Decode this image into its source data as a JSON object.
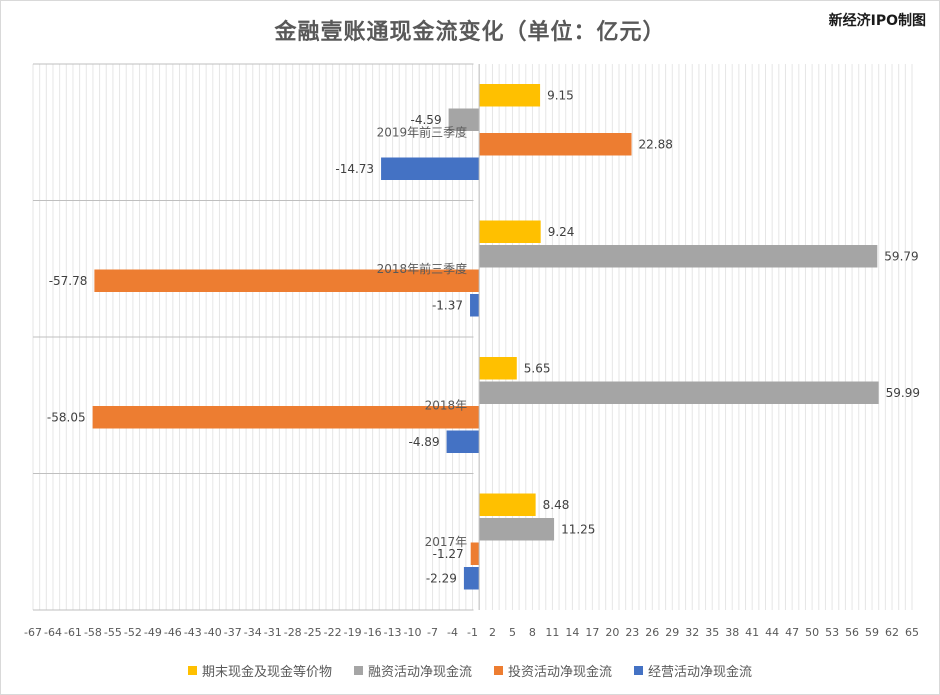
{
  "chart_data": {
    "type": "bar",
    "orientation": "horizontal",
    "title": "金融壹账通现金流变化（单位：亿元）",
    "xlabel": "",
    "ylabel": "",
    "xlim": [
      -67,
      65
    ],
    "x_ticks": [
      -67,
      -64,
      -61,
      -58,
      -55,
      -52,
      -49,
      -46,
      -43,
      -40,
      -37,
      -34,
      -31,
      -28,
      -25,
      -22,
      -19,
      -16,
      -13,
      -10,
      -7,
      -4,
      -1,
      2,
      5,
      8,
      11,
      14,
      17,
      20,
      23,
      26,
      29,
      32,
      35,
      38,
      41,
      44,
      47,
      50,
      53,
      56,
      59,
      62,
      65
    ],
    "grid": true,
    "legend_position": "bottom",
    "categories": [
      "2019年前三季度",
      "2018年前三季度",
      "2018年",
      "2017年"
    ],
    "series": [
      {
        "name": "期末现金及现金等价物",
        "color": "#FFC000",
        "values": [
          9.15,
          9.24,
          5.65,
          8.48
        ]
      },
      {
        "name": "融资活动净现金流",
        "color": "#A5A5A5",
        "values": [
          -4.59,
          59.79,
          59.99,
          11.25
        ]
      },
      {
        "name": "投资活动净现金流",
        "color": "#ED7D31",
        "values": [
          22.88,
          -57.78,
          -58.05,
          -1.27
        ]
      },
      {
        "name": "经营活动净现金流",
        "color": "#4472C4",
        "values": [
          -14.73,
          -1.37,
          -4.89,
          -2.29
        ]
      }
    ]
  },
  "watermark": "新经济IPO制图"
}
